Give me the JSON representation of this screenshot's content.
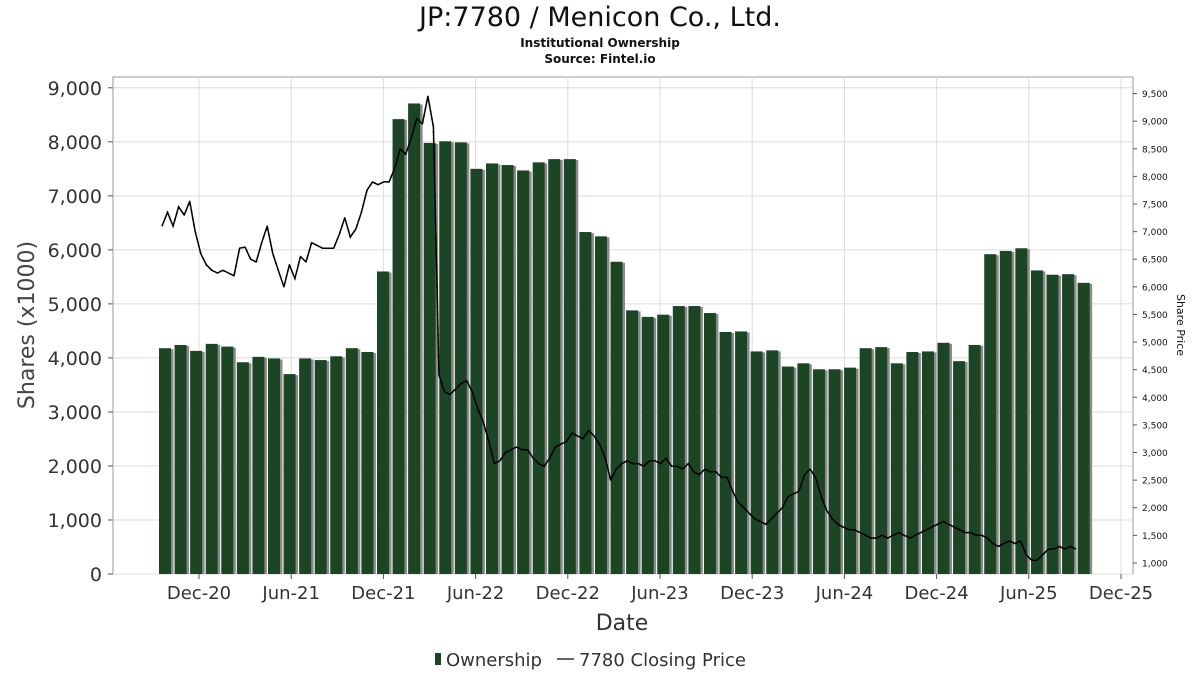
{
  "header": {
    "title": "JP:7780 / Menicon Co., Ltd.",
    "subtitle": "Institutional Ownership",
    "source": "Source: Fintel.io"
  },
  "chart_data": {
    "type": "bar",
    "xlabel": "Date",
    "ylabel": "Shares (x1000)",
    "y2label": "Share Price",
    "ylim": [
      0,
      9200
    ],
    "y2lim": [
      800,
      9800
    ],
    "grid": true,
    "legend_placement": "bottom-center",
    "colors": {
      "bar": "#1c4526",
      "bar_shadow": "#8a8a8a",
      "line": "#000000",
      "grid": "#dcdcdc"
    },
    "yticks": [
      "0",
      "1,000",
      "2,000",
      "3,000",
      "4,000",
      "5,000",
      "6,000",
      "7,000",
      "8,000",
      "9,000"
    ],
    "y2ticks": [
      "1,000",
      "1,500",
      "2,000",
      "2,500",
      "3,000",
      "3,500",
      "4,000",
      "4,500",
      "5,000",
      "5,500",
      "6,000",
      "6,500",
      "7,000",
      "7,500",
      "8,000",
      "8,500",
      "9,000",
      "9,500"
    ],
    "xticks": [
      "Dec-20",
      "Jun-21",
      "Dec-21",
      "Jun-22",
      "Dec-22",
      "Jun-23",
      "Dec-23",
      "Jun-24",
      "Dec-24",
      "Jun-25",
      "Dec-25"
    ],
    "series": [
      {
        "name": "Ownership",
        "kind": "bar",
        "values": [
          4180,
          4240,
          4130,
          4260,
          4210,
          3920,
          4020,
          3990,
          3700,
          3990,
          3960,
          4030,
          4180,
          4110,
          5600,
          8420,
          8710,
          7980,
          8010,
          7990,
          7500,
          7600,
          7570,
          7470,
          7620,
          7680,
          7680,
          6330,
          6250,
          5780,
          4880,
          4760,
          4800,
          4960,
          4960,
          4830,
          4480,
          4490,
          4120,
          4140,
          3840,
          3900,
          3790,
          3790,
          3820,
          4180,
          4200,
          3900,
          4110,
          4120,
          4280,
          3940,
          4240,
          5920,
          5980,
          6030,
          5620,
          5540,
          5550,
          5390
        ]
      },
      {
        "name": "7780 Closing Price",
        "kind": "line",
        "values": [
          7100,
          7350,
          7100,
          7450,
          7300,
          7550,
          7000,
          6600,
          6400,
          6300,
          6250,
          6300,
          6250,
          6200,
          6700,
          6720,
          6500,
          6450,
          6800,
          7100,
          6600,
          6300,
          6000,
          6400,
          6150,
          6550,
          6450,
          6800,
          6750,
          6700,
          6700,
          6700,
          6950,
          7250,
          6900,
          7050,
          7350,
          7750,
          7900,
          7850,
          7900,
          7900,
          8150,
          8500,
          8400,
          8700,
          9050,
          8950,
          9450,
          8900,
          4400,
          4100,
          4050,
          4150,
          4250,
          4300,
          4100,
          3800,
          3550,
          3200,
          2800,
          2850,
          3000,
          3050,
          3100,
          3050,
          3050,
          2900,
          2800,
          2750,
          2900,
          3100,
          3150,
          3200,
          3350,
          3300,
          3250,
          3400,
          3300,
          3150,
          2900,
          2500,
          2700,
          2800,
          2850,
          2800,
          2800,
          2750,
          2850,
          2850,
          2800,
          2900,
          2750,
          2750,
          2700,
          2800,
          2650,
          2600,
          2700,
          2650,
          2650,
          2550,
          2550,
          2300,
          2100,
          2000,
          1900,
          1800,
          1750,
          1700,
          1800,
          1900,
          2000,
          2200,
          2250,
          2300,
          2600,
          2700,
          2550,
          2200,
          1950,
          1800,
          1700,
          1650,
          1600,
          1600,
          1550,
          1500,
          1450,
          1450,
          1500,
          1450,
          1500,
          1550,
          1500,
          1450,
          1500,
          1550,
          1600,
          1650,
          1700,
          1750,
          1700,
          1650,
          1600,
          1550,
          1550,
          1500,
          1500,
          1450,
          1350,
          1300,
          1350,
          1400,
          1350,
          1400,
          1150,
          1050,
          1050,
          1150,
          1250,
          1250,
          1300,
          1250,
          1300,
          1250
        ]
      }
    ]
  }
}
